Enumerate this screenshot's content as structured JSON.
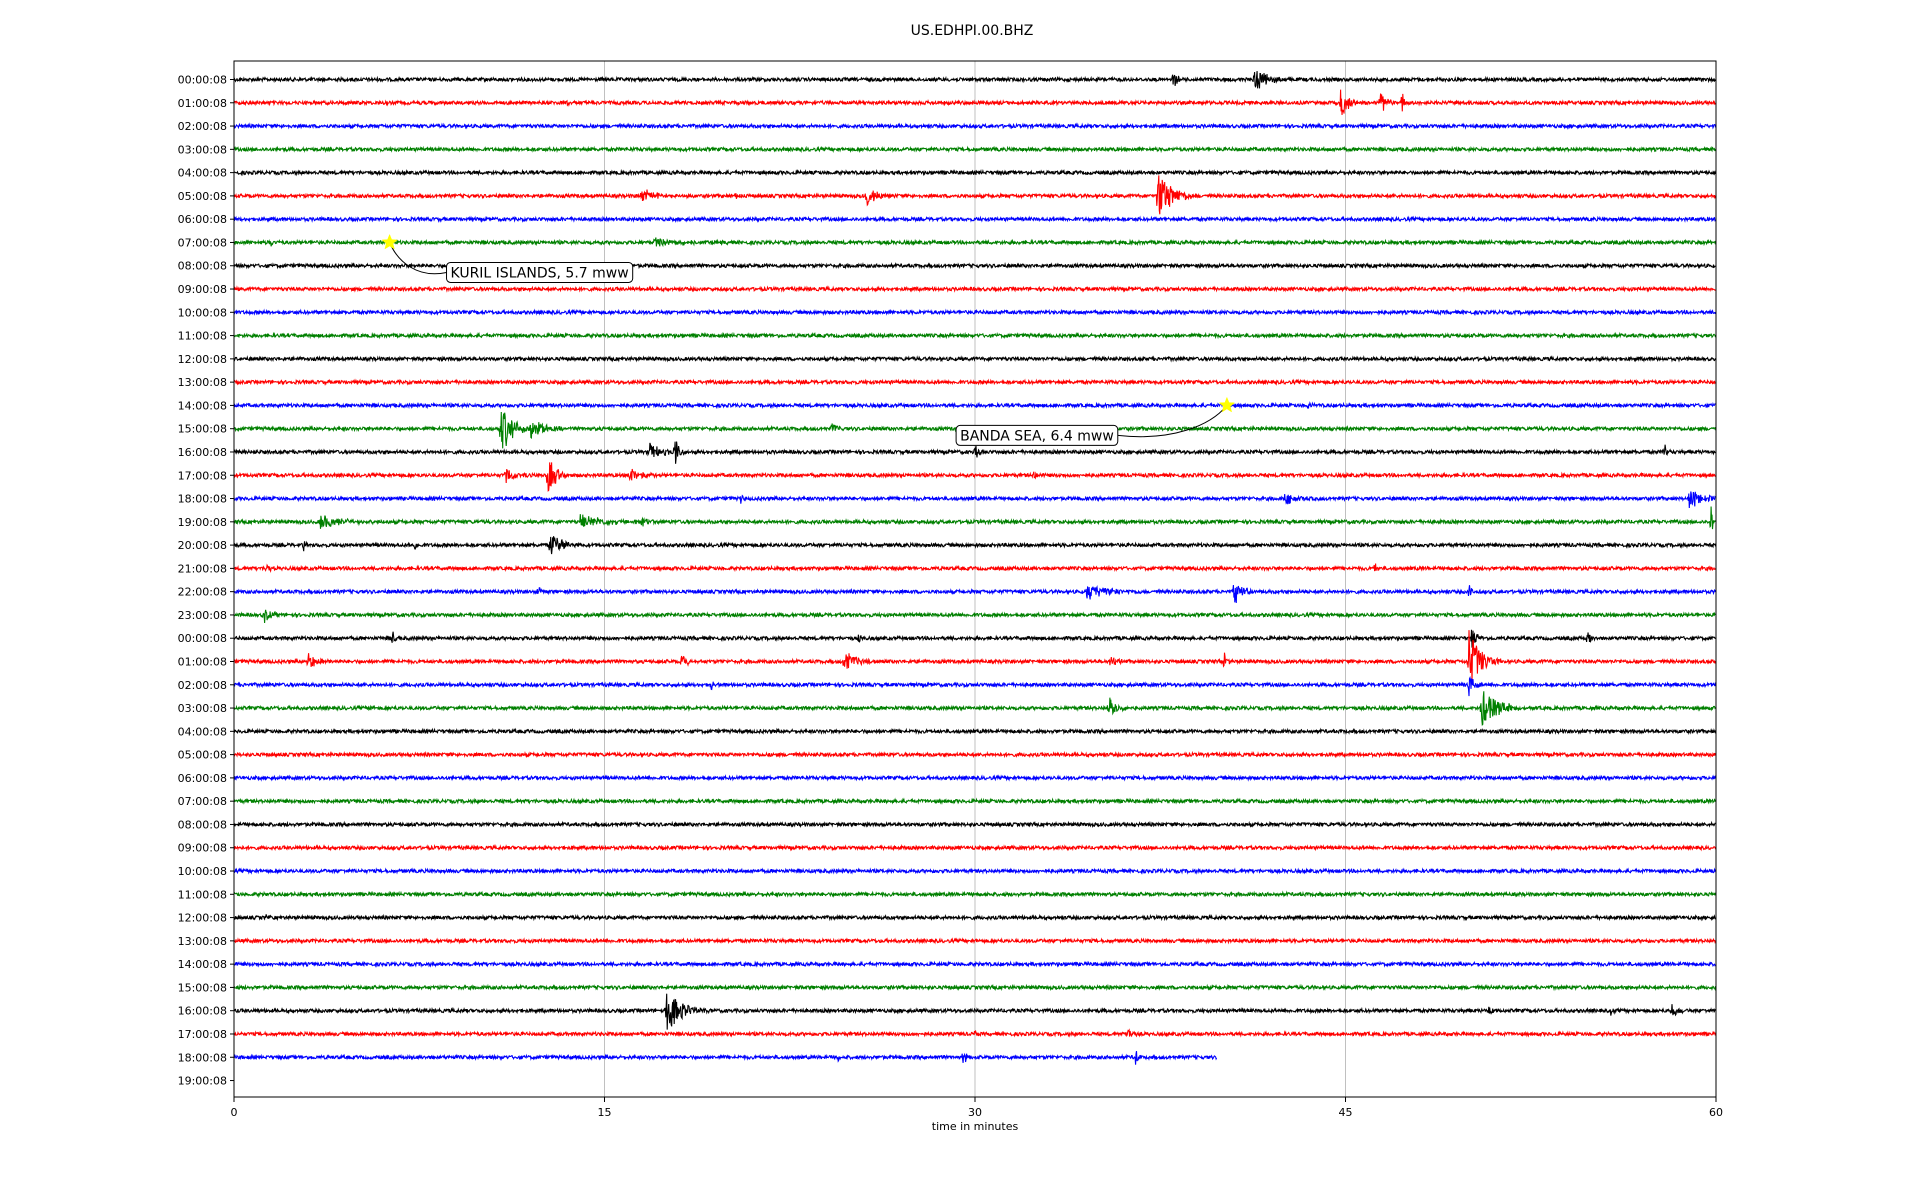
{
  "chart_data": {
    "type": "line",
    "title": "US.EDHPI.00.BHZ",
    "xlabel": "time in minutes",
    "ylabel": "",
    "xlim": [
      0,
      60
    ],
    "xticks": [
      0,
      15,
      30,
      45,
      60
    ],
    "xtick_labels": [
      "0",
      "15",
      "30",
      "45",
      "60"
    ],
    "grid": "vertical",
    "trace_colors": [
      "#000000",
      "#ff0000",
      "#0000ff",
      "#008000"
    ],
    "row_labels": [
      "00:00:08",
      "01:00:08",
      "02:00:08",
      "03:00:08",
      "04:00:08",
      "05:00:08",
      "06:00:08",
      "07:00:08",
      "08:00:08",
      "09:00:08",
      "10:00:08",
      "11:00:08",
      "12:00:08",
      "13:00:08",
      "14:00:08",
      "15:00:08",
      "16:00:08",
      "17:00:08",
      "18:00:08",
      "19:00:08",
      "20:00:08",
      "21:00:08",
      "22:00:08",
      "23:00:08",
      "00:00:08",
      "01:00:08",
      "02:00:08",
      "03:00:08",
      "04:00:08",
      "05:00:08",
      "06:00:08",
      "07:00:08",
      "08:00:08",
      "09:00:08",
      "10:00:08",
      "11:00:08",
      "12:00:08",
      "13:00:08",
      "14:00:08",
      "15:00:08",
      "16:00:08",
      "17:00:08",
      "18:00:08",
      "19:00:08"
    ],
    "last_row_end_minute": 39.8,
    "events": [
      {
        "row": 0,
        "minute": 38.0,
        "amp": 0.5,
        "dur": 0.6
      },
      {
        "row": 0,
        "minute": 41.3,
        "amp": 0.6,
        "dur": 1.4
      },
      {
        "row": 1,
        "minute": 13.5,
        "amp": 0.3,
        "dur": 0.2
      },
      {
        "row": 1,
        "minute": 44.8,
        "amp": 0.8,
        "dur": 0.8
      },
      {
        "row": 1,
        "minute": 46.4,
        "amp": 0.5,
        "dur": 0.8
      },
      {
        "row": 1,
        "minute": 47.3,
        "amp": 0.6,
        "dur": 0.2
      },
      {
        "row": 5,
        "minute": 16.5,
        "amp": 0.3,
        "dur": 2.0
      },
      {
        "row": 5,
        "minute": 20.3,
        "amp": 0.25,
        "dur": 0.4
      },
      {
        "row": 5,
        "minute": 25.6,
        "amp": 0.5,
        "dur": 1.2
      },
      {
        "row": 5,
        "minute": 37.4,
        "amp": 1.2,
        "dur": 1.6
      },
      {
        "row": 7,
        "minute": 1.5,
        "amp": 0.2,
        "dur": 0.2
      },
      {
        "row": 7,
        "minute": 17.0,
        "amp": 0.25,
        "dur": 3.0
      },
      {
        "row": 14,
        "minute": 43.5,
        "amp": 0.2,
        "dur": 0.3
      },
      {
        "row": 15,
        "minute": 10.8,
        "amp": 1.1,
        "dur": 1.6
      },
      {
        "row": 15,
        "minute": 12.0,
        "amp": 0.5,
        "dur": 1.6
      },
      {
        "row": 15,
        "minute": 24.2,
        "amp": 0.4,
        "dur": 0.4
      },
      {
        "row": 16,
        "minute": 16.8,
        "amp": 0.5,
        "dur": 1.2
      },
      {
        "row": 16,
        "minute": 17.8,
        "amp": 1.0,
        "dur": 0.5
      },
      {
        "row": 16,
        "minute": 30.0,
        "amp": 0.35,
        "dur": 0.4
      },
      {
        "row": 16,
        "minute": 57.9,
        "amp": 0.5,
        "dur": 0.3
      },
      {
        "row": 17,
        "minute": 11.0,
        "amp": 0.4,
        "dur": 1.0
      },
      {
        "row": 17,
        "minute": 12.7,
        "amp": 0.9,
        "dur": 1.0
      },
      {
        "row": 17,
        "minute": 16.0,
        "amp": 0.4,
        "dur": 1.2
      },
      {
        "row": 17,
        "minute": 32.4,
        "amp": 0.3,
        "dur": 0.3
      },
      {
        "row": 18,
        "minute": 20.5,
        "amp": 0.4,
        "dur": 0.3
      },
      {
        "row": 18,
        "minute": 42.5,
        "amp": 0.3,
        "dur": 1.5
      },
      {
        "row": 18,
        "minute": 58.9,
        "amp": 0.5,
        "dur": 1.4
      },
      {
        "row": 19,
        "minute": 3.5,
        "amp": 0.35,
        "dur": 2.5
      },
      {
        "row": 19,
        "minute": 14.0,
        "amp": 0.3,
        "dur": 3.0
      },
      {
        "row": 19,
        "minute": 16.5,
        "amp": 0.4,
        "dur": 0.4
      },
      {
        "row": 19,
        "minute": 59.8,
        "amp": 0.8,
        "dur": 0.3
      },
      {
        "row": 20,
        "minute": 2.8,
        "amp": 0.4,
        "dur": 0.2
      },
      {
        "row": 20,
        "minute": 7.3,
        "amp": 0.5,
        "dur": 0.2
      },
      {
        "row": 20,
        "minute": 12.8,
        "amp": 0.6,
        "dur": 1.4
      },
      {
        "row": 21,
        "minute": 1.3,
        "amp": 0.3,
        "dur": 0.3
      },
      {
        "row": 21,
        "minute": 46.2,
        "amp": 0.4,
        "dur": 0.2
      },
      {
        "row": 22,
        "minute": 12.3,
        "amp": 0.3,
        "dur": 0.4
      },
      {
        "row": 22,
        "minute": 34.5,
        "amp": 0.4,
        "dur": 2.5
      },
      {
        "row": 22,
        "minute": 40.5,
        "amp": 0.7,
        "dur": 0.8
      },
      {
        "row": 22,
        "minute": 50.0,
        "amp": 0.4,
        "dur": 0.3
      },
      {
        "row": 23,
        "minute": 1.2,
        "amp": 0.35,
        "dur": 0.8
      },
      {
        "row": 24,
        "minute": 6.4,
        "amp": 0.5,
        "dur": 0.3
      },
      {
        "row": 24,
        "minute": 25.3,
        "amp": 0.3,
        "dur": 0.2
      },
      {
        "row": 24,
        "minute": 50.1,
        "amp": 0.6,
        "dur": 0.5
      },
      {
        "row": 24,
        "minute": 54.8,
        "amp": 0.5,
        "dur": 0.3
      },
      {
        "row": 25,
        "minute": 3.0,
        "amp": 0.4,
        "dur": 1.0
      },
      {
        "row": 25,
        "minute": 18.1,
        "amp": 0.5,
        "dur": 0.6
      },
      {
        "row": 25,
        "minute": 24.7,
        "amp": 0.5,
        "dur": 1.3
      },
      {
        "row": 25,
        "minute": 35.5,
        "amp": 0.4,
        "dur": 0.6
      },
      {
        "row": 25,
        "minute": 40.1,
        "amp": 0.5,
        "dur": 0.3
      },
      {
        "row": 25,
        "minute": 50.0,
        "amp": 1.5,
        "dur": 1.3
      },
      {
        "row": 26,
        "minute": 19.3,
        "amp": 0.3,
        "dur": 0.4
      },
      {
        "row": 26,
        "minute": 50.0,
        "amp": 0.8,
        "dur": 0.5
      },
      {
        "row": 27,
        "minute": 5.5,
        "amp": 0.3,
        "dur": 0.3
      },
      {
        "row": 27,
        "minute": 35.4,
        "amp": 0.5,
        "dur": 1.0
      },
      {
        "row": 27,
        "minute": 50.5,
        "amp": 0.9,
        "dur": 2.0
      },
      {
        "row": 36,
        "minute": 1.3,
        "amp": 0.2,
        "dur": 0.3
      },
      {
        "row": 40,
        "minute": 17.5,
        "amp": 1.0,
        "dur": 1.8
      },
      {
        "row": 40,
        "minute": 50.8,
        "amp": 0.35,
        "dur": 0.3
      },
      {
        "row": 40,
        "minute": 55.7,
        "amp": 0.35,
        "dur": 0.3
      },
      {
        "row": 40,
        "minute": 58.2,
        "amp": 0.4,
        "dur": 0.6
      },
      {
        "row": 41,
        "minute": 30.0,
        "amp": 0.3,
        "dur": 0.2
      },
      {
        "row": 41,
        "minute": 36.2,
        "amp": 0.35,
        "dur": 0.4
      },
      {
        "row": 42,
        "minute": 24.4,
        "amp": 0.4,
        "dur": 0.3
      },
      {
        "row": 42,
        "minute": 29.5,
        "amp": 0.3,
        "dur": 0.5
      },
      {
        "row": 42,
        "minute": 36.5,
        "amp": 0.7,
        "dur": 0.2
      }
    ],
    "annotations": [
      {
        "text": "KURIL ISLANDS, 5.7 mww",
        "row": 7,
        "minute": 6.3,
        "marker": "star",
        "marker_color": "#ffff00"
      },
      {
        "text": "BANDA SEA, 6.4 mww",
        "row": 14,
        "minute": 40.2,
        "marker": "star",
        "marker_color": "#ffff00"
      }
    ]
  }
}
